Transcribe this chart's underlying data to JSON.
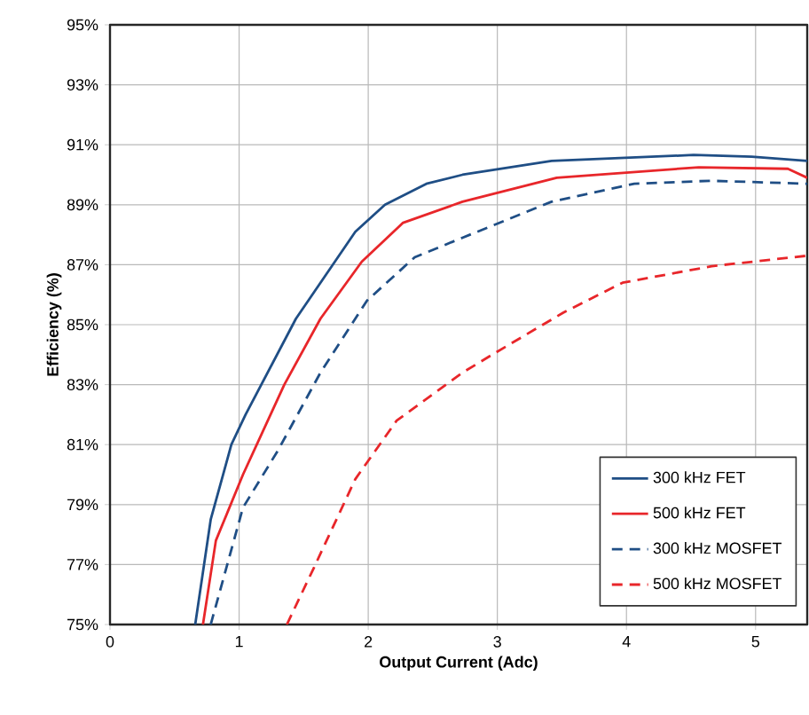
{
  "chart_data": {
    "type": "line",
    "xlabel": "Output Current (Adc)",
    "ylabel": "Efficiency (%)",
    "xlim": [
      0,
      5.4
    ],
    "ylim": [
      75,
      95
    ],
    "xticks": [
      0,
      1,
      2,
      3,
      4,
      5
    ],
    "yticks": [
      {
        "value": 75,
        "label": "75%"
      },
      {
        "value": 77,
        "label": "77%"
      },
      {
        "value": 79,
        "label": "79%"
      },
      {
        "value": 81,
        "label": "81%"
      },
      {
        "value": 83,
        "label": "83%"
      },
      {
        "value": 85,
        "label": "85%"
      },
      {
        "value": 87,
        "label": "87%"
      },
      {
        "value": 89,
        "label": "89%"
      },
      {
        "value": 91,
        "label": "91%"
      },
      {
        "value": 93,
        "label": "93%"
      },
      {
        "value": 95,
        "label": "95%"
      }
    ],
    "grid": true,
    "legend": "bottom right",
    "marker": "none",
    "series": [
      {
        "name": "300 kHz FET",
        "color": "#1f4e85",
        "line_style": "solid",
        "x": [
          0.66,
          0.78,
          0.94,
          1.05,
          1.44,
          1.9,
          2.13,
          2.45,
          2.73,
          3.42,
          4.52,
          4.97,
          5.4
        ],
        "values": [
          75,
          78.5,
          81,
          82,
          85.2,
          88.1,
          89,
          89.7,
          90,
          90.46,
          90.66,
          90.6,
          90.46
        ]
      },
      {
        "name": "500 kHz FET",
        "color": "#e8262a",
        "line_style": "solid",
        "x": [
          0.72,
          0.82,
          1.03,
          1.35,
          1.63,
          1.95,
          2.27,
          2.73,
          3.46,
          4.56,
          5.25,
          5.4
        ],
        "values": [
          75,
          77.8,
          80,
          83,
          85.2,
          87.1,
          88.4,
          89.1,
          89.9,
          90.25,
          90.2,
          89.9
        ]
      },
      {
        "name": "300 kHz MOSFET",
        "color": "#1f4e85",
        "line_style": "dashed",
        "x": [
          0.78,
          1.03,
          1.3,
          1.63,
          1.99,
          2.36,
          2.73,
          3.42,
          4.06,
          4.65,
          5.4
        ],
        "values": [
          75,
          78.9,
          80.8,
          83.4,
          85.8,
          87.25,
          87.9,
          89.1,
          89.7,
          89.8,
          89.7
        ]
      },
      {
        "name": "500 kHz MOSFET",
        "color": "#e8262a",
        "line_style": "dashed",
        "x": [
          1.37,
          1.58,
          1.9,
          2.22,
          2.73,
          2.96,
          3.51,
          3.97,
          4.66,
          5.4
        ],
        "values": [
          75,
          76.9,
          79.85,
          81.8,
          83.4,
          84,
          85.4,
          86.4,
          86.95,
          87.3
        ]
      }
    ]
  }
}
